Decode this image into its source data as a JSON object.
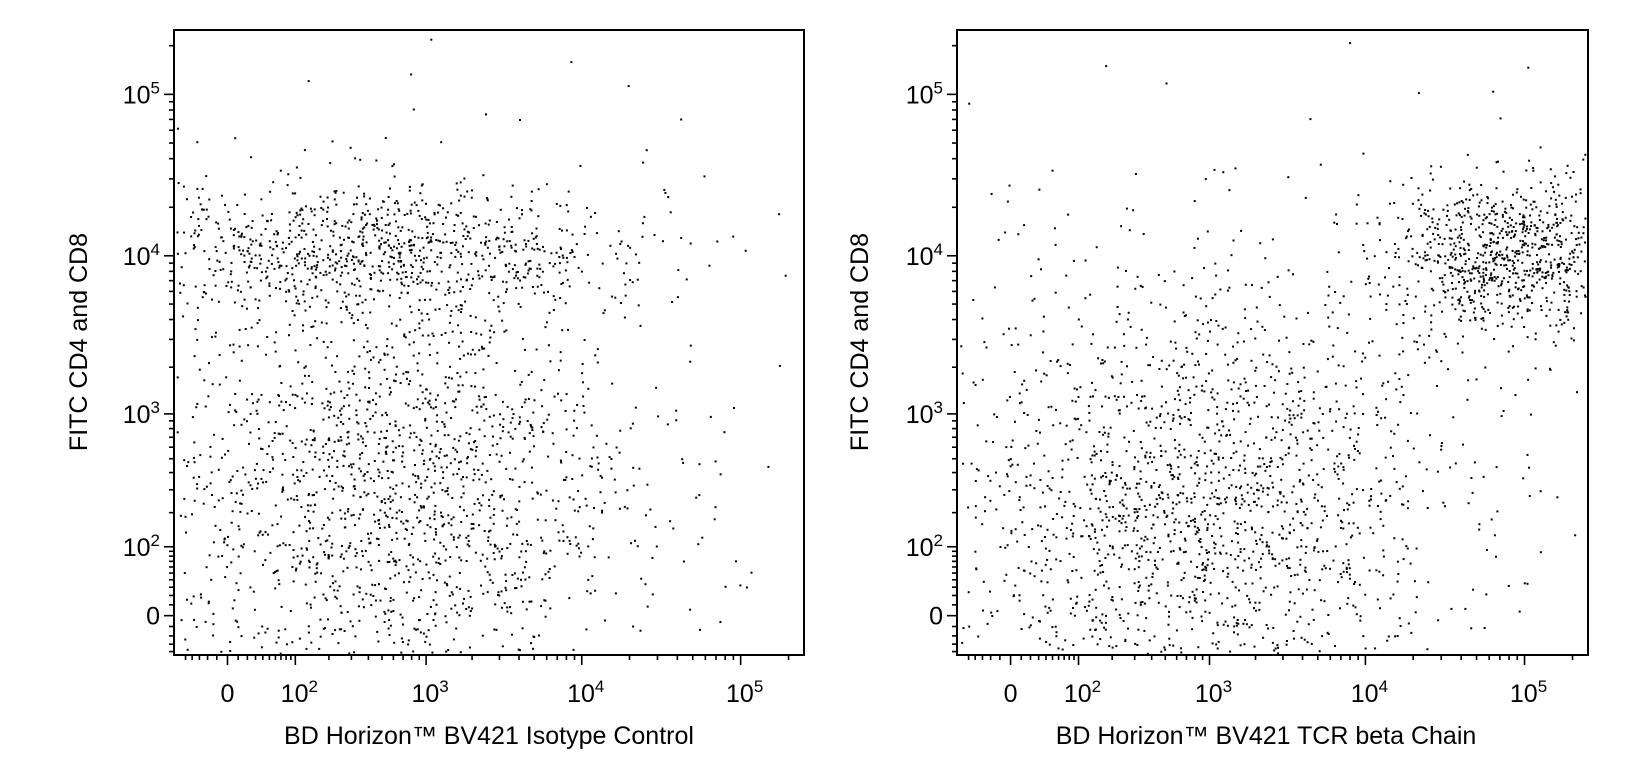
{
  "chart_data": [
    {
      "type": "scatter",
      "xlabel": "BD Horizon™ BV421 Isotype Control",
      "ylabel": "FITC CD4 and CD8",
      "xscale": "biexponential",
      "yscale": "biexponential",
      "xlim": [
        -70,
        250000
      ],
      "ylim": [
        -45,
        250000
      ],
      "xticks": [
        {
          "value": 0,
          "base": "0",
          "exp": ""
        },
        {
          "value": 100,
          "base": "10",
          "exp": "2"
        },
        {
          "value": 1000,
          "base": "10",
          "exp": "3"
        },
        {
          "value": 10000,
          "base": "10",
          "exp": "4"
        },
        {
          "value": 100000,
          "base": "10",
          "exp": "5"
        }
      ],
      "yticks": [
        {
          "value": 0,
          "base": "0",
          "exp": ""
        },
        {
          "value": 100,
          "base": "10",
          "exp": "2"
        },
        {
          "value": 1000,
          "base": "10",
          "exp": "3"
        },
        {
          "value": 10000,
          "base": "10",
          "exp": "4"
        },
        {
          "value": 100000,
          "base": "10",
          "exp": "5"
        }
      ],
      "point_color": "#000000",
      "populations": [
        {
          "x": 600,
          "y": 11500,
          "x_spread": 0.38,
          "y_spread": 0.09,
          "count": 650
        },
        {
          "x": 150,
          "y": 11000,
          "x_spread": 0.35,
          "y_spread": 0.09,
          "count": 230
        },
        {
          "x": 700,
          "y": 230,
          "x_spread": 0.34,
          "y_spread": 0.28,
          "count": 1100
        },
        {
          "x": 200,
          "y": 150,
          "x_spread": 0.45,
          "y_spread": 0.45,
          "count": 520
        },
        {
          "x": 800,
          "y": 2500,
          "x_spread": 0.35,
          "y_spread": 0.32,
          "count": 280
        },
        {
          "x": 600,
          "y": 20,
          "x_spread": 0.4,
          "y_spread": 0.5,
          "count": 260
        }
      ]
    },
    {
      "type": "scatter",
      "xlabel": "BD Horizon™ BV421 TCR beta Chain",
      "ylabel": "FITC CD4 and CD8",
      "xscale": "biexponential",
      "yscale": "biexponential",
      "xlim": [
        -70,
        250000
      ],
      "ylim": [
        -45,
        250000
      ],
      "xticks": [
        {
          "value": 0,
          "base": "0",
          "exp": ""
        },
        {
          "value": 100,
          "base": "10",
          "exp": "2"
        },
        {
          "value": 1000,
          "base": "10",
          "exp": "3"
        },
        {
          "value": 10000,
          "base": "10",
          "exp": "4"
        },
        {
          "value": 100000,
          "base": "10",
          "exp": "5"
        }
      ],
      "yticks": [
        {
          "value": 0,
          "base": "0",
          "exp": ""
        },
        {
          "value": 100,
          "base": "10",
          "exp": "2"
        },
        {
          "value": 1000,
          "base": "10",
          "exp": "3"
        },
        {
          "value": 10000,
          "base": "10",
          "exp": "4"
        },
        {
          "value": 100000,
          "base": "10",
          "exp": "5"
        }
      ],
      "point_color": "#000000",
      "populations": [
        {
          "x": 85000,
          "y": 10500,
          "x_spread": 0.18,
          "y_spread": 0.1,
          "count": 900
        },
        {
          "x": 1000,
          "y": 220,
          "x_spread": 0.32,
          "y_spread": 0.3,
          "count": 1300
        },
        {
          "x": 250,
          "y": 120,
          "x_spread": 0.5,
          "y_spread": 0.45,
          "count": 500
        },
        {
          "x": 8000,
          "y": 1800,
          "x_spread": 0.45,
          "y_spread": 0.35,
          "count": 150
        },
        {
          "x": 700,
          "y": 20,
          "x_spread": 0.4,
          "y_spread": 0.5,
          "count": 250
        }
      ]
    }
  ]
}
